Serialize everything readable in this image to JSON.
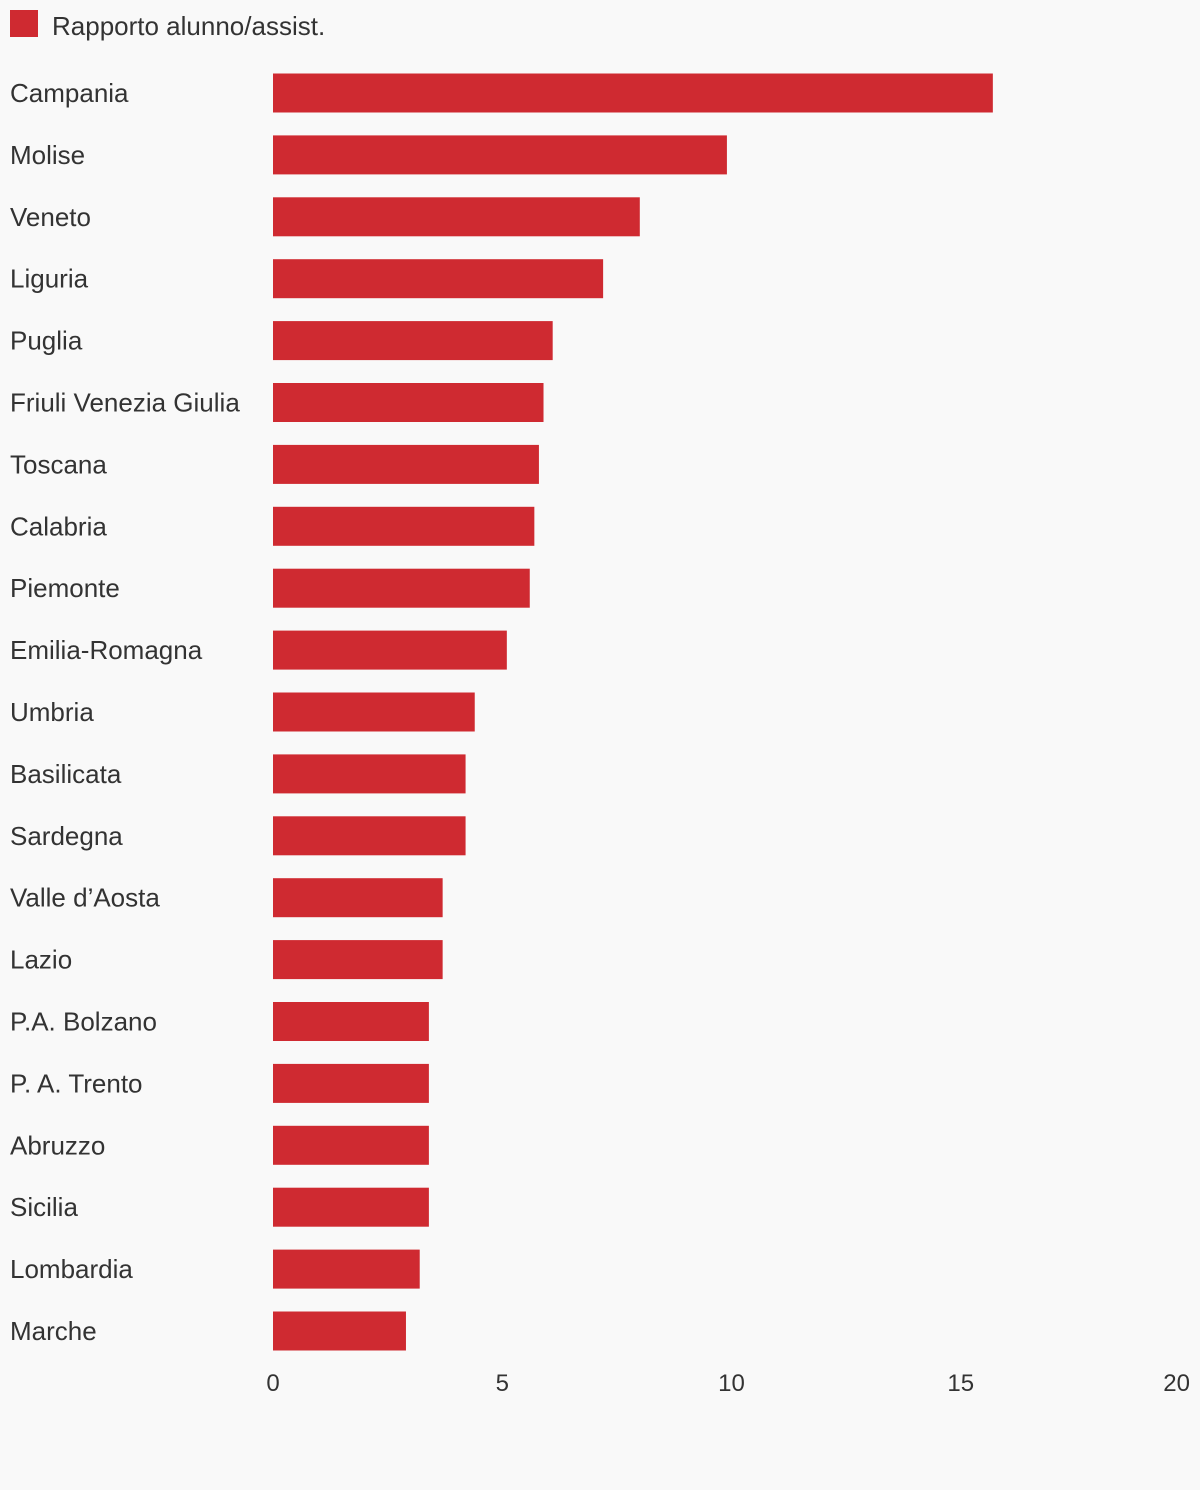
{
  "chart_data": {
    "type": "bar",
    "orientation": "horizontal",
    "categories": [
      "Campania",
      "Molise",
      "Veneto",
      "Liguria",
      "Puglia",
      "Friuli Venezia Giulia",
      "Toscana",
      "Calabria",
      "Piemonte",
      "Emilia-Romagna",
      "Umbria",
      "Basilicata",
      "Sardegna",
      "Valle d’Aosta",
      "Lazio",
      "P.A. Bolzano",
      "P. A. Trento",
      "Abruzzo",
      "Sicilia",
      "Lombardia",
      "Marche"
    ],
    "series": [
      {
        "name": "Rapporto alunno/assist.",
        "color": "#cf2a31",
        "values": [
          15.7,
          9.9,
          8.0,
          7.2,
          6.1,
          5.9,
          5.8,
          5.7,
          5.6,
          5.1,
          4.4,
          4.2,
          4.2,
          3.7,
          3.7,
          3.4,
          3.4,
          3.4,
          3.4,
          3.2,
          2.9
        ]
      }
    ],
    "xlim": [
      0,
      20
    ],
    "xticks": [
      "0",
      "5",
      "10",
      "15",
      "20"
    ],
    "title": "",
    "xlabel": "",
    "ylabel": "",
    "grid": false,
    "legend": "top-left"
  }
}
